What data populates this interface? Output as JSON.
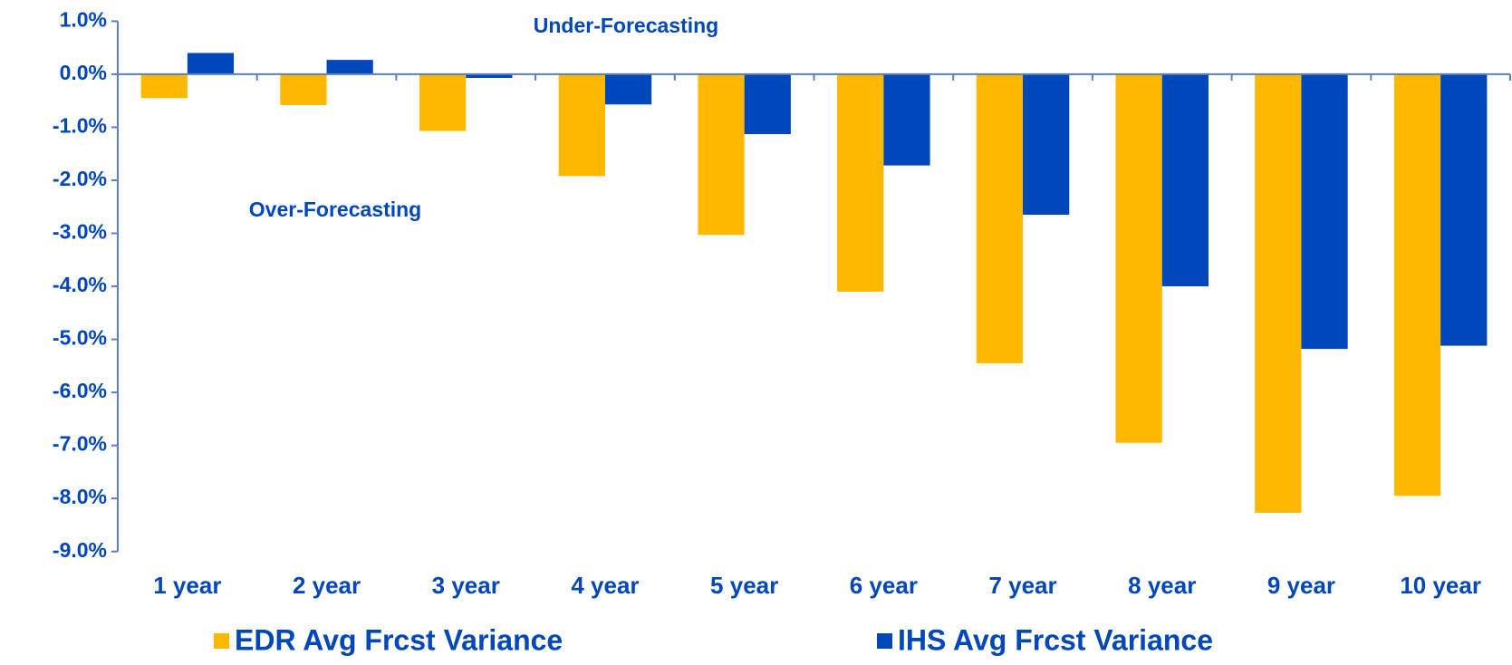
{
  "chart_data": {
    "type": "bar",
    "categories": [
      "1 year",
      "2 year",
      "3 year",
      "4 year",
      "5 year",
      "6 year",
      "7 year",
      "8 year",
      "9 year",
      "10 year"
    ],
    "series": [
      {
        "name": "EDR Avg Frcst Variance",
        "color": "#FFB800",
        "values": [
          -0.45,
          -0.58,
          -1.07,
          -1.92,
          -3.03,
          -4.1,
          -5.45,
          -6.95,
          -8.27,
          -7.95
        ]
      },
      {
        "name": "IHS Avg Frcst Variance",
        "color": "#0047BB",
        "values": [
          0.4,
          0.27,
          -0.07,
          -0.57,
          -1.13,
          -1.72,
          -2.65,
          -4.0,
          -5.18,
          -5.12
        ]
      }
    ],
    "annotations": [
      "Under-Forecasting",
      "Over-Forecasting"
    ],
    "ylim": [
      -9,
      1
    ],
    "yticks": [
      {
        "value": 1,
        "label": "1.0%"
      },
      {
        "value": 0,
        "label": "0.0%"
      },
      {
        "value": -1,
        "label": "-1.0%"
      },
      {
        "value": -2,
        "label": "-2.0%"
      },
      {
        "value": -3,
        "label": "-3.0%"
      },
      {
        "value": -4,
        "label": "-4.0%"
      },
      {
        "value": -5,
        "label": "-5.0%"
      },
      {
        "value": -6,
        "label": "-6.0%"
      },
      {
        "value": -7,
        "label": "-7.0%"
      },
      {
        "value": -8,
        "label": "-8.0%"
      },
      {
        "value": -9,
        "label": "-9.0%"
      }
    ],
    "grid": false,
    "legend": "bottom"
  }
}
